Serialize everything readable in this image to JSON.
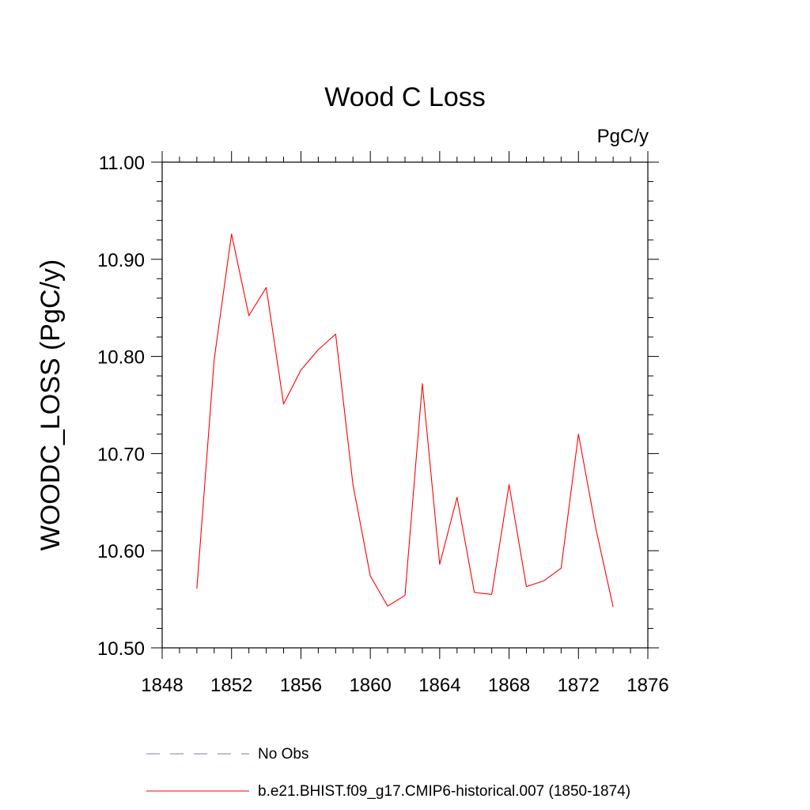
{
  "chart_data": {
    "type": "line",
    "title": "Wood C Loss",
    "units_label": "PgC/y",
    "ylabel": "WOODC_LOSS  (PgC/y)",
    "xlabel": "",
    "xlim": [
      1848,
      1876
    ],
    "ylim": [
      10.5,
      11.0
    ],
    "x_ticks": [
      "1848",
      "1852",
      "1856",
      "1860",
      "1864",
      "1868",
      "1872",
      "1876"
    ],
    "y_ticks": [
      "10.50",
      "10.60",
      "10.70",
      "10.80",
      "10.90",
      "11.00"
    ],
    "grid": false,
    "legend_placement": "bottom",
    "series": [
      {
        "name": "b.e21.BHIST.f09_g17.CMIP6-historical.007 (1850-1874)",
        "color": "#ff0000",
        "style": "solid",
        "x": [
          1850,
          1851,
          1852,
          1853,
          1854,
          1855,
          1856,
          1857,
          1858,
          1859,
          1860,
          1861,
          1862,
          1863,
          1864,
          1865,
          1866,
          1867,
          1868,
          1869,
          1870,
          1871,
          1872,
          1873,
          1874
        ],
        "y": [
          10.561,
          10.797,
          10.926,
          10.842,
          10.871,
          10.751,
          10.786,
          10.807,
          10.823,
          10.668,
          10.574,
          10.543,
          10.554,
          10.772,
          10.586,
          10.655,
          10.557,
          10.555,
          10.668,
          10.563,
          10.569,
          10.582,
          10.72,
          10.623,
          10.542
        ]
      }
    ],
    "legend": [
      {
        "label": "No Obs",
        "color": "#7b7bc8",
        "style": "dashed"
      },
      {
        "label": "b.e21.BHIST.f09_g17.CMIP6-historical.007 (1850-1874)",
        "color": "#ff0000",
        "style": "solid"
      }
    ]
  }
}
